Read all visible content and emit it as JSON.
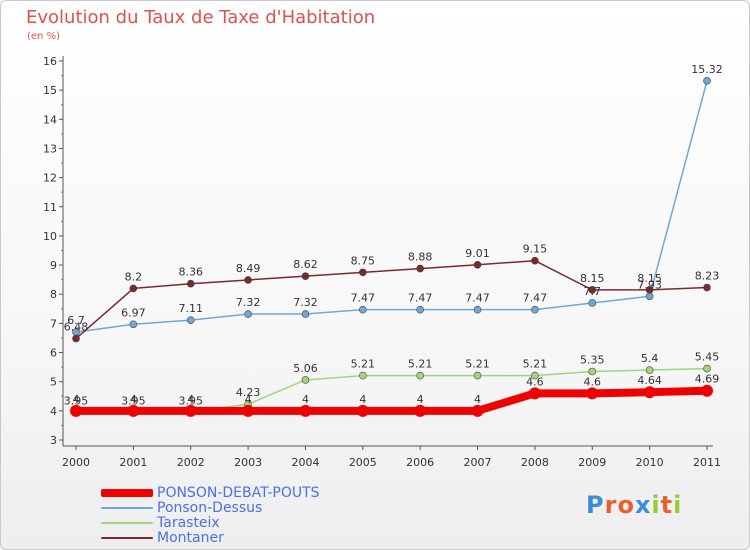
{
  "title": "Evolution du Taux de Taxe d'Habitation",
  "subtitle": "(en %)",
  "logo": {
    "text": "Proxiti",
    "letters": [
      "P",
      "r",
      "o",
      "x",
      "i",
      "t",
      "i"
    ],
    "colors": [
      "#3b8fd9",
      "#e8612c",
      "#e8612c",
      "#3b8fd9",
      "#9bc93a",
      "#e8612c",
      "#9bc93a"
    ]
  },
  "chart_data": {
    "type": "line",
    "categories": [
      "2000",
      "2001",
      "2002",
      "2003",
      "2004",
      "2005",
      "2006",
      "2007",
      "2008",
      "2009",
      "2010",
      "2011"
    ],
    "ylim": [
      3,
      16
    ],
    "yticks": [
      3,
      4,
      5,
      6,
      7,
      8,
      9,
      10,
      11,
      12,
      13,
      14,
      15,
      16
    ],
    "grid": false,
    "series": [
      {
        "name": "PONSON-DEBAT-POUTS",
        "color": "#ee0000",
        "values": [
          4,
          4,
          4,
          4,
          4,
          4,
          4,
          4,
          4.6,
          4.6,
          4.64,
          4.69
        ],
        "labels": [
          "4",
          "4",
          "4",
          "4",
          "4",
          "4",
          "4",
          "4",
          "4.6",
          "4.6",
          "4.64",
          "4.69"
        ]
      },
      {
        "name": "Ponson-Dessus",
        "color": "#6fa7d6",
        "values": [
          6.7,
          6.97,
          7.11,
          7.32,
          7.32,
          7.47,
          7.47,
          7.47,
          7.47,
          7.7,
          7.93,
          15.32
        ],
        "labels": [
          "6.7",
          "6.97",
          "7.11",
          "7.32",
          "7.32",
          "7.47",
          "7.47",
          "7.47",
          "7.47",
          "7.7",
          "7.93",
          "15.32"
        ]
      },
      {
        "name": "Tarasteix",
        "color": "#9dd67b",
        "values": [
          3.95,
          3.95,
          3.95,
          4.23,
          5.06,
          5.21,
          5.21,
          5.21,
          5.21,
          5.35,
          5.4,
          5.45
        ],
        "labels": [
          "3.95",
          "3.95",
          "3.95",
          "4.23",
          "5.06",
          "5.21",
          "5.21",
          "5.21",
          "5.21",
          "5.35",
          "5.4",
          "5.45"
        ]
      },
      {
        "name": "Montaner",
        "color": "#7a2a2a",
        "values": [
          6.48,
          8.2,
          8.36,
          8.49,
          8.62,
          8.75,
          8.88,
          9.01,
          9.15,
          8.15,
          8.15,
          8.23
        ],
        "labels": [
          "6.48",
          "8.2",
          "8.36",
          "8.49",
          "8.62",
          "8.75",
          "8.88",
          "9.01",
          "9.15",
          "8.15",
          "8.15",
          "8.23"
        ]
      }
    ]
  }
}
